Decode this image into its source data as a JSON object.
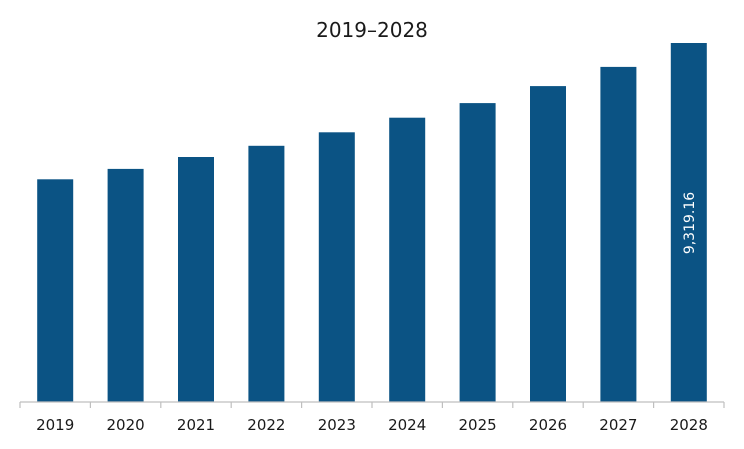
{
  "chart_data": {
    "type": "bar",
    "title": "2019–2028",
    "xlabel": "",
    "ylabel": "",
    "categories": [
      "2019",
      "2020",
      "2021",
      "2022",
      "2023",
      "2024",
      "2025",
      "2026",
      "2027",
      "2028"
    ],
    "values": [
      5780,
      6050,
      6360,
      6650,
      7000,
      7380,
      7760,
      8200,
      8700,
      9319.16
    ],
    "ylim": [
      0,
      10500
    ],
    "grid": false,
    "legend": "none",
    "data_labels": [
      {
        "category": "2028",
        "text": "9,319.16",
        "orientation": "vertical"
      }
    ],
    "colors": {
      "bar": "#0b5384",
      "axis": "#bfbfbf",
      "text": "#1a1a1a",
      "data_label": "#ffffff"
    }
  }
}
